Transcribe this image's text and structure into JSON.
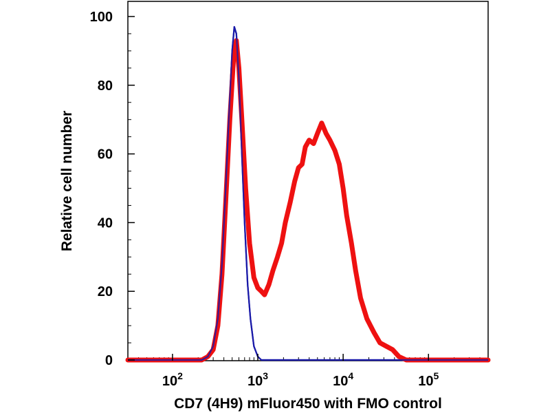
{
  "chart_data": {
    "type": "line",
    "title": "",
    "xlabel": "CD7 (4H9) mFluor450 with FMO control",
    "ylabel": "Relative cell number",
    "x_scale": "log",
    "xlim": [
      30,
      500000
    ],
    "ylim": [
      0,
      100
    ],
    "y_ticks": [
      0,
      20,
      40,
      60,
      80,
      100
    ],
    "y_tick_labels": [
      "0",
      "20",
      "40",
      "60",
      "80",
      "100"
    ],
    "x_ticks": [
      {
        "value": 100,
        "base": "10",
        "exp": "2"
      },
      {
        "value": 1000,
        "base": "10",
        "exp": "3"
      },
      {
        "value": 10000,
        "base": "10",
        "exp": "4"
      },
      {
        "value": 100000,
        "base": "10",
        "exp": "5"
      }
    ],
    "series": [
      {
        "name": "FMO control",
        "color": "#1a1aa8",
        "points": [
          [
            30,
            0
          ],
          [
            150,
            0
          ],
          [
            220,
            0
          ],
          [
            260,
            1
          ],
          [
            300,
            4
          ],
          [
            340,
            12
          ],
          [
            380,
            28
          ],
          [
            420,
            50
          ],
          [
            460,
            72
          ],
          [
            500,
            90
          ],
          [
            530,
            97
          ],
          [
            560,
            95
          ],
          [
            600,
            82
          ],
          [
            650,
            60
          ],
          [
            700,
            40
          ],
          [
            760,
            22
          ],
          [
            820,
            12
          ],
          [
            900,
            4
          ],
          [
            1000,
            1
          ],
          [
            1100,
            0
          ],
          [
            3000,
            0
          ],
          [
            500000,
            0
          ]
        ]
      },
      {
        "name": "CD7 (4H9) mFluor450",
        "color": "#ee1111",
        "points": [
          [
            30,
            0
          ],
          [
            150,
            0
          ],
          [
            220,
            0
          ],
          [
            260,
            1
          ],
          [
            300,
            3
          ],
          [
            340,
            10
          ],
          [
            380,
            25
          ],
          [
            420,
            46
          ],
          [
            470,
            70
          ],
          [
            520,
            88
          ],
          [
            560,
            93
          ],
          [
            600,
            85
          ],
          [
            650,
            70
          ],
          [
            720,
            50
          ],
          [
            800,
            34
          ],
          [
            900,
            24
          ],
          [
            1000,
            21
          ],
          [
            1100,
            20
          ],
          [
            1200,
            19
          ],
          [
            1350,
            22
          ],
          [
            1500,
            26
          ],
          [
            1700,
            30
          ],
          [
            1900,
            34
          ],
          [
            2100,
            40
          ],
          [
            2400,
            46
          ],
          [
            2700,
            52
          ],
          [
            3000,
            56
          ],
          [
            3300,
            57
          ],
          [
            3600,
            62
          ],
          [
            4000,
            64
          ],
          [
            4500,
            63
          ],
          [
            5000,
            66
          ],
          [
            5600,
            69
          ],
          [
            6300,
            66
          ],
          [
            7000,
            64
          ],
          [
            8000,
            61
          ],
          [
            9000,
            57
          ],
          [
            10000,
            50
          ],
          [
            11000,
            42
          ],
          [
            12500,
            34
          ],
          [
            14000,
            26
          ],
          [
            16000,
            18
          ],
          [
            19000,
            12
          ],
          [
            23000,
            8
          ],
          [
            27000,
            5
          ],
          [
            32000,
            4
          ],
          [
            38000,
            3
          ],
          [
            45000,
            1
          ],
          [
            55000,
            0
          ],
          [
            500000,
            0
          ]
        ]
      }
    ]
  }
}
